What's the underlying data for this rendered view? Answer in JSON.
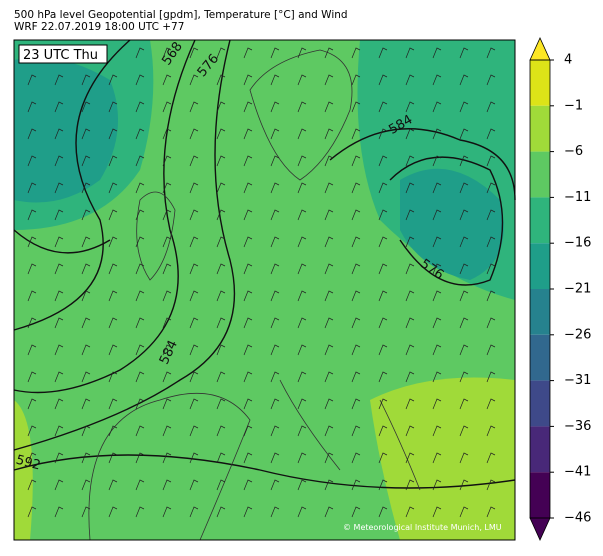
{
  "map": {
    "title": "500 hPa level Geopotential [gpdm], Temperature [°C] and Wind",
    "subtitle": "WRF 22.07.2019 18:00 UTC +77",
    "time_label": "23 UTC Thu",
    "contour_labels": [
      "568",
      "576",
      "584",
      "584",
      "576",
      "592"
    ],
    "credit": "© Meteorological Institute Munich, LMU",
    "colorbar": {
      "ylim": [
        -46,
        4
      ],
      "yticks": [
        4,
        {
          "value": -1,
          "label": "−1"
        },
        {
          "value": -6,
          "label": "−6"
        },
        {
          "value": -11,
          "label": "−11"
        },
        {
          "value": -16,
          "label": "−16"
        },
        {
          "value": -21,
          "label": "−21"
        },
        {
          "value": -26,
          "label": "−26"
        },
        {
          "value": -31,
          "label": "−31"
        },
        {
          "value": -36,
          "label": "−36"
        },
        {
          "value": -41,
          "label": "−41"
        },
        {
          "value": -46,
          "label": "−46"
        }
      ],
      "colors": [
        "#dde318",
        "#a0da39",
        "#5ec962",
        "#2fb47c",
        "#1f9e89",
        "#26828e",
        "#31688e",
        "#3e4989",
        "#482878",
        "#440154"
      ],
      "extend_colors": [
        "#fde725",
        "#440154"
      ]
    }
  }
}
